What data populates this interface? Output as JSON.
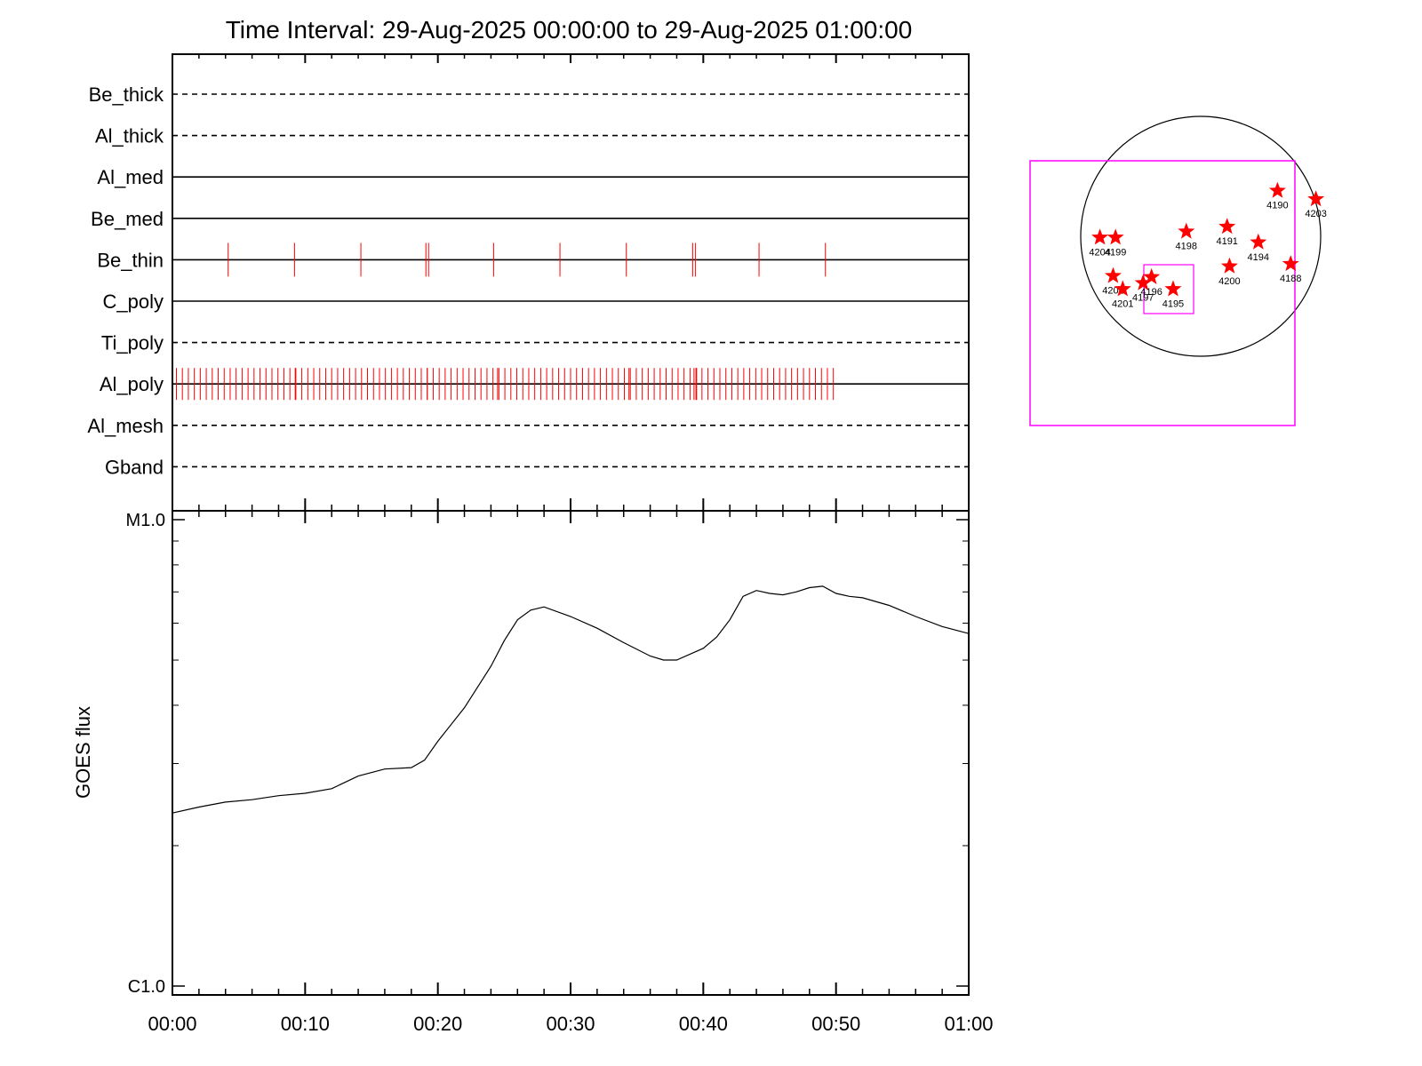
{
  "title": "Time Interval: 29-Aug-2025 00:00:00 to 29-Aug-2025 01:00:00",
  "chart_data": [
    {
      "type": "timeline",
      "name": "filter-exposures",
      "x_range_minutes": [
        0,
        60
      ],
      "tick_labels": [
        "00:00",
        "00:10",
        "00:20",
        "00:30",
        "00:40",
        "00:50",
        "01:00"
      ],
      "rows": [
        {
          "label": "Be_thick",
          "style": "dashed",
          "events": []
        },
        {
          "label": "Al_thick",
          "style": "dashed",
          "events": []
        },
        {
          "label": "Al_med",
          "style": "solid",
          "events": []
        },
        {
          "label": "Be_med",
          "style": "solid",
          "events": []
        },
        {
          "label": "Be_thin",
          "style": "solid",
          "events": [
            4.2,
            9.2,
            14.2,
            19.1,
            19.3,
            24.2,
            29.2,
            34.2,
            39.2,
            39.4,
            44.2,
            49.2
          ]
        },
        {
          "label": "C_poly",
          "style": "solid",
          "events": []
        },
        {
          "label": "Ti_poly",
          "style": "dashed",
          "events": []
        },
        {
          "label": "Al_poly",
          "style": "solid",
          "events": [],
          "event_range": [
            0.3,
            49.8
          ],
          "event_step": 0.45
        },
        {
          "label": "Al_mesh",
          "style": "dashed",
          "events": []
        },
        {
          "label": "Gband",
          "style": "dashed",
          "events": []
        }
      ],
      "event_color": "#ff0000"
    },
    {
      "type": "line",
      "name": "goes-flux",
      "ylabel": "GOES flux",
      "y_scale": "log",
      "ylim": [
        1e-06,
        1e-05
      ],
      "y_tick_labels": [
        {
          "value": 1e-05,
          "label": "M1.0"
        },
        {
          "value": 1e-06,
          "label": "C1.0"
        }
      ],
      "x_range_minutes": [
        0,
        60
      ],
      "tick_labels": [
        "00:00",
        "00:10",
        "00:20",
        "00:30",
        "00:40",
        "00:50",
        "01:00"
      ],
      "series": [
        {
          "x": [
            0,
            2,
            4,
            6,
            8,
            10,
            12,
            14,
            16,
            18,
            19,
            20,
            22,
            24,
            25,
            26,
            27,
            28,
            30,
            32,
            34,
            36,
            37,
            38,
            40,
            41,
            42,
            43,
            44,
            45,
            46,
            47,
            48,
            49,
            50,
            51,
            52,
            54,
            56,
            58,
            60
          ],
          "y": [
            2.35e-06,
            2.42e-06,
            2.48e-06,
            2.51e-06,
            2.56e-06,
            2.59e-06,
            2.65e-06,
            2.82e-06,
            2.92e-06,
            2.94e-06,
            3.05e-06,
            3.35e-06,
            3.95e-06,
            4.85e-06,
            5.5e-06,
            6.1e-06,
            6.4e-06,
            6.5e-06,
            6.2e-06,
            5.85e-06,
            5.45e-06,
            5.1e-06,
            5e-06,
            5e-06,
            5.3e-06,
            5.6e-06,
            6.1e-06,
            6.85e-06,
            7.05e-06,
            6.95e-06,
            6.9e-06,
            7e-06,
            7.15e-06,
            7.2e-06,
            6.95e-06,
            6.85e-06,
            6.8e-06,
            6.55e-06,
            6.2e-06,
            5.9e-06,
            5.7e-06
          ]
        }
      ]
    },
    {
      "type": "scatter",
      "name": "solar-disk-map",
      "marker": "star",
      "marker_color": "#ff0000",
      "box_color": "#ff00ff",
      "points": [
        {
          "label": "4190",
          "x": 0.64,
          "y": 0.38
        },
        {
          "label": "4203",
          "x": 0.96,
          "y": 0.31
        },
        {
          "label": "4198",
          "x": -0.12,
          "y": 0.04
        },
        {
          "label": "4191",
          "x": 0.22,
          "y": 0.08
        },
        {
          "label": "4194",
          "x": 0.48,
          "y": -0.05
        },
        {
          "label": "4204",
          "x": -0.84,
          "y": -0.01
        },
        {
          "label": "4199",
          "x": -0.71,
          "y": -0.01
        },
        {
          "label": "4200",
          "x": 0.24,
          "y": -0.25
        },
        {
          "label": "4188",
          "x": 0.75,
          "y": -0.23
        },
        {
          "label": "4202",
          "x": -0.73,
          "y": -0.33
        },
        {
          "label": "4201",
          "x": -0.65,
          "y": -0.44
        },
        {
          "label": "4197",
          "x": -0.48,
          "y": -0.39
        },
        {
          "label": "4196",
          "x": -0.41,
          "y": -0.34
        },
        {
          "label": "4195",
          "x": -0.23,
          "y": -0.44
        }
      ]
    }
  ]
}
